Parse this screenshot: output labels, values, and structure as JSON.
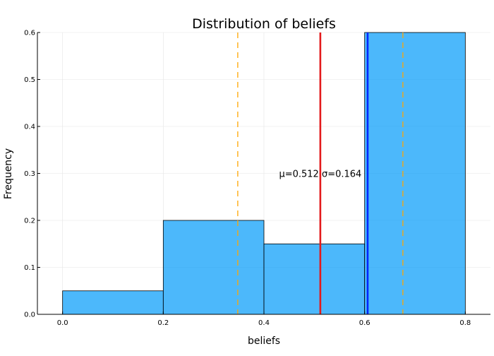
{
  "chart_data": {
    "type": "bar",
    "title": "Distribution of beliefs",
    "xlabel": "beliefs",
    "ylabel": "Frequency",
    "xlim": [
      -0.05,
      0.85
    ],
    "ylim": [
      0,
      0.6
    ],
    "x_ticks": [
      "0.0",
      "0.2",
      "0.4",
      "0.6",
      "0.8"
    ],
    "y_ticks": [
      "0.0",
      "0.1",
      "0.2",
      "0.3",
      "0.4",
      "0.5",
      "0.6"
    ],
    "grid": true,
    "legend": "none",
    "bins": [
      {
        "x0": 0.0,
        "x1": 0.2,
        "value": 0.05
      },
      {
        "x0": 0.2,
        "x1": 0.4,
        "value": 0.2
      },
      {
        "x0": 0.4,
        "x1": 0.6,
        "value": 0.15
      },
      {
        "x0": 0.6,
        "x1": 0.8,
        "value": 0.6
      }
    ],
    "vlines": [
      {
        "x": 0.512,
        "color": "#e31a1c",
        "style": "solid"
      },
      {
        "x": 0.606,
        "color": "#0026ff",
        "style": "solid"
      },
      {
        "x": 0.348,
        "color": "#ffa500",
        "style": "dashed"
      },
      {
        "x": 0.676,
        "color": "#ffa500",
        "style": "dashed"
      }
    ],
    "annotation": {
      "text": "μ=0.512 σ=0.164",
      "x": 0.512,
      "y": 0.3
    },
    "colors": {
      "bar_fill": "#009af9",
      "bar_opacity": 0.7,
      "bar_stroke": "#000000",
      "grid": "#e5e5e5",
      "axis": "#000000"
    }
  }
}
